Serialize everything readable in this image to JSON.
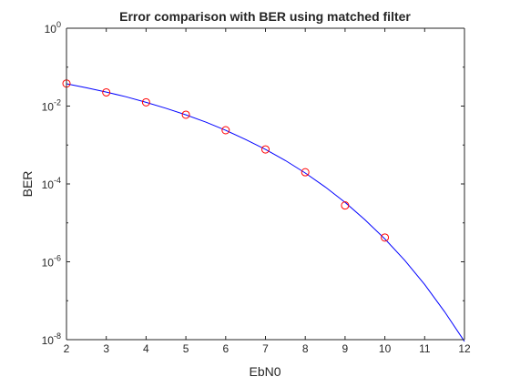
{
  "chart_data": {
    "type": "line",
    "title": "Error comparison with BER using matched filter",
    "xlabel": "EbN0",
    "ylabel": "BER",
    "xlim": [
      2,
      12
    ],
    "ylim": [
      1e-08,
      1
    ],
    "yscale": "log",
    "grid": false,
    "x_ticks": [
      "2",
      "3",
      "4",
      "5",
      "6",
      "7",
      "8",
      "9",
      "10",
      "11",
      "12"
    ],
    "y_ticks": [
      {
        "value": 1,
        "base": "10",
        "exp": "0"
      },
      {
        "value": 0.01,
        "base": "10",
        "exp": "-2"
      },
      {
        "value": 0.0001,
        "base": "10",
        "exp": "-4"
      },
      {
        "value": 1e-06,
        "base": "10",
        "exp": "-6"
      },
      {
        "value": 1e-08,
        "base": "10",
        "exp": "-8"
      }
    ],
    "series": [
      {
        "style": "line",
        "color": "#0000ff",
        "x": [
          2,
          2.5,
          3,
          3.5,
          4,
          4.5,
          5,
          5.5,
          6,
          6.5,
          7,
          7.5,
          8,
          8.5,
          9,
          9.5,
          10,
          10.5,
          11,
          11.5,
          12
        ],
        "y": [
          0.0375,
          0.0296,
          0.0229,
          0.0173,
          0.0125,
          0.00877,
          0.00595,
          0.00389,
          0.00239,
          0.00139,
          0.000773,
          0.0004,
          0.000191,
          8.38e-05,
          3.36e-05,
          1.2e-05,
          3.87e-06,
          1.09e-06,
          2.61e-07,
          5.23e-08,
          9.02e-09
        ]
      },
      {
        "style": "markers",
        "marker": "circle",
        "color": "#ff0000",
        "x": [
          2,
          3,
          4,
          5,
          6,
          7,
          8,
          9,
          10
        ],
        "y": [
          0.038,
          0.0225,
          0.0125,
          0.006,
          0.0024,
          0.00077,
          0.0002,
          2.8e-05,
          4.2e-06
        ]
      }
    ]
  }
}
